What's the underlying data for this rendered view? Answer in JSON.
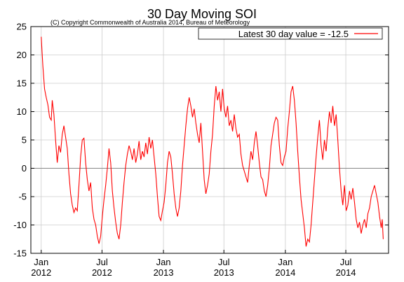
{
  "chart_data": {
    "type": "line",
    "title": "30 Day Moving SOI",
    "subtitle": "(C) Copyright Commonwealth of Australia 2014, Bureau of Meteorology",
    "xlabel": "",
    "ylabel": "",
    "ylim": [
      -15,
      25
    ],
    "yticks": [
      -15,
      -10,
      -5,
      0,
      5,
      10,
      15,
      20,
      25
    ],
    "xlim": [
      "2011-12-01",
      "2014-11-06"
    ],
    "xticks": [
      {
        "date": "2012-01-01",
        "month": "Jan",
        "year": "2012"
      },
      {
        "date": "2012-07-01",
        "month": "Jul",
        "year": "2012"
      },
      {
        "date": "2013-01-01",
        "month": "Jan",
        "year": "2013"
      },
      {
        "date": "2013-07-01",
        "month": "Jul",
        "year": "2013"
      },
      {
        "date": "2014-01-01",
        "month": "Jan",
        "year": "2014"
      },
      {
        "date": "2014-07-01",
        "month": "Jul",
        "year": "2014"
      }
    ],
    "grid": true,
    "zero_line": true,
    "legend": {
      "placement": "top-right",
      "entry": "Latest 30 day value = -12.5"
    },
    "series": [
      {
        "color": "#ff0000",
        "points": [
          [
            "2012-01-01",
            23.2
          ],
          [
            "2012-01-06",
            18.0
          ],
          [
            "2012-01-11",
            14.0
          ],
          [
            "2012-01-16",
            12.5
          ],
          [
            "2012-01-21",
            11.2
          ],
          [
            "2012-01-26",
            9.0
          ],
          [
            "2012-01-31",
            8.5
          ],
          [
            "2012-02-03",
            12.0
          ],
          [
            "2012-02-08",
            9.5
          ],
          [
            "2012-02-13",
            5.0
          ],
          [
            "2012-02-18",
            1.0
          ],
          [
            "2012-02-23",
            4.0
          ],
          [
            "2012-02-28",
            2.8
          ],
          [
            "2012-03-04",
            6.0
          ],
          [
            "2012-03-09",
            7.5
          ],
          [
            "2012-03-14",
            5.5
          ],
          [
            "2012-03-19",
            3.5
          ],
          [
            "2012-03-24",
            -1.0
          ],
          [
            "2012-03-29",
            -4.5
          ],
          [
            "2012-04-03",
            -6.5
          ],
          [
            "2012-04-08",
            -7.8
          ],
          [
            "2012-04-13",
            -7.0
          ],
          [
            "2012-04-18",
            -7.5
          ],
          [
            "2012-04-23",
            -3.0
          ],
          [
            "2012-04-28",
            2.0
          ],
          [
            "2012-05-03",
            5.0
          ],
          [
            "2012-05-08",
            5.3
          ],
          [
            "2012-05-13",
            1.0
          ],
          [
            "2012-05-18",
            -2.0
          ],
          [
            "2012-05-23",
            -4.0
          ],
          [
            "2012-05-28",
            -2.5
          ],
          [
            "2012-06-02",
            -7.0
          ],
          [
            "2012-06-07",
            -9.0
          ],
          [
            "2012-06-12",
            -10.0
          ],
          [
            "2012-06-17",
            -12.0
          ],
          [
            "2012-06-22",
            -13.3
          ],
          [
            "2012-06-27",
            -12.0
          ],
          [
            "2012-07-02",
            -8.5
          ],
          [
            "2012-07-07",
            -5.5
          ],
          [
            "2012-07-12",
            -3.0
          ],
          [
            "2012-07-17",
            0.0
          ],
          [
            "2012-07-22",
            3.5
          ],
          [
            "2012-07-27",
            1.0
          ],
          [
            "2012-08-01",
            -4.0
          ],
          [
            "2012-08-06",
            -7.0
          ],
          [
            "2012-08-11",
            -9.5
          ],
          [
            "2012-08-16",
            -11.5
          ],
          [
            "2012-08-21",
            -12.5
          ],
          [
            "2012-08-26",
            -10.0
          ],
          [
            "2012-08-31",
            -6.0
          ],
          [
            "2012-09-05",
            -2.5
          ],
          [
            "2012-09-10",
            0.5
          ],
          [
            "2012-09-15",
            2.5
          ],
          [
            "2012-09-20",
            4.0
          ],
          [
            "2012-09-25",
            3.0
          ],
          [
            "2012-09-30",
            1.5
          ],
          [
            "2012-10-05",
            3.5
          ],
          [
            "2012-10-10",
            1.0
          ],
          [
            "2012-10-15",
            2.5
          ],
          [
            "2012-10-20",
            4.8
          ],
          [
            "2012-10-25",
            1.5
          ],
          [
            "2012-10-30",
            3.0
          ],
          [
            "2012-11-04",
            2.0
          ],
          [
            "2012-11-09",
            4.5
          ],
          [
            "2012-11-14",
            2.5
          ],
          [
            "2012-11-19",
            5.5
          ],
          [
            "2012-11-24",
            3.5
          ],
          [
            "2012-11-29",
            5.0
          ],
          [
            "2012-12-04",
            2.0
          ],
          [
            "2012-12-09",
            -1.0
          ],
          [
            "2012-12-14",
            -5.0
          ],
          [
            "2012-12-19",
            -8.5
          ],
          [
            "2012-12-24",
            -9.2
          ],
          [
            "2012-12-29",
            -7.5
          ],
          [
            "2013-01-03",
            -6.0
          ],
          [
            "2013-01-08",
            -3.0
          ],
          [
            "2013-01-13",
            1.0
          ],
          [
            "2013-01-18",
            3.0
          ],
          [
            "2013-01-23",
            2.0
          ],
          [
            "2013-01-28",
            -1.0
          ],
          [
            "2013-02-02",
            -4.5
          ],
          [
            "2013-02-07",
            -7.0
          ],
          [
            "2013-02-12",
            -8.5
          ],
          [
            "2013-02-17",
            -7.0
          ],
          [
            "2013-02-22",
            -4.0
          ],
          [
            "2013-02-27",
            0.5
          ],
          [
            "2013-03-04",
            4.0
          ],
          [
            "2013-03-09",
            7.5
          ],
          [
            "2013-03-14",
            10.5
          ],
          [
            "2013-03-19",
            12.5
          ],
          [
            "2013-03-24",
            11.0
          ],
          [
            "2013-03-29",
            9.0
          ],
          [
            "2013-04-03",
            10.5
          ],
          [
            "2013-04-08",
            8.0
          ],
          [
            "2013-04-13",
            6.0
          ],
          [
            "2013-04-18",
            4.5
          ],
          [
            "2013-04-23",
            8.0
          ],
          [
            "2013-04-28",
            3.0
          ],
          [
            "2013-05-03",
            -2.0
          ],
          [
            "2013-05-08",
            -4.5
          ],
          [
            "2013-05-13",
            -3.0
          ],
          [
            "2013-05-18",
            -1.0
          ],
          [
            "2013-05-23",
            3.0
          ],
          [
            "2013-05-28",
            6.0
          ],
          [
            "2013-06-02",
            11.0
          ],
          [
            "2013-06-07",
            14.5
          ],
          [
            "2013-06-12",
            12.0
          ],
          [
            "2013-06-17",
            13.5
          ],
          [
            "2013-06-22",
            10.0
          ],
          [
            "2013-06-27",
            14.0
          ],
          [
            "2013-07-02",
            10.5
          ],
          [
            "2013-07-07",
            9.0
          ],
          [
            "2013-07-12",
            11.0
          ],
          [
            "2013-07-17",
            7.5
          ],
          [
            "2013-07-22",
            8.5
          ],
          [
            "2013-07-27",
            6.5
          ],
          [
            "2013-08-01",
            9.5
          ],
          [
            "2013-08-06",
            7.0
          ],
          [
            "2013-08-11",
            5.5
          ],
          [
            "2013-08-16",
            6.0
          ],
          [
            "2013-08-21",
            2.5
          ],
          [
            "2013-08-26",
            0.5
          ],
          [
            "2013-08-31",
            -0.5
          ],
          [
            "2013-09-05",
            -1.5
          ],
          [
            "2013-09-10",
            -2.5
          ],
          [
            "2013-09-15",
            0.5
          ],
          [
            "2013-09-20",
            3.0
          ],
          [
            "2013-09-25",
            1.5
          ],
          [
            "2013-09-30",
            4.5
          ],
          [
            "2013-10-05",
            6.5
          ],
          [
            "2013-10-10",
            4.0
          ],
          [
            "2013-10-15",
            1.0
          ],
          [
            "2013-10-20",
            -1.5
          ],
          [
            "2013-10-25",
            -2.0
          ],
          [
            "2013-10-30",
            -4.0
          ],
          [
            "2013-11-04",
            -5.0
          ],
          [
            "2013-11-09",
            -3.0
          ],
          [
            "2013-11-14",
            0.0
          ],
          [
            "2013-11-19",
            4.0
          ],
          [
            "2013-11-24",
            6.0
          ],
          [
            "2013-11-29",
            8.0
          ],
          [
            "2013-12-04",
            9.0
          ],
          [
            "2013-12-09",
            8.5
          ],
          [
            "2013-12-14",
            4.0
          ],
          [
            "2013-12-19",
            1.0
          ],
          [
            "2013-12-24",
            0.5
          ],
          [
            "2013-12-29",
            2.0
          ],
          [
            "2014-01-03",
            3.0
          ],
          [
            "2014-01-08",
            7.0
          ],
          [
            "2014-01-13",
            10.0
          ],
          [
            "2014-01-18",
            13.5
          ],
          [
            "2014-01-23",
            14.5
          ],
          [
            "2014-01-28",
            12.0
          ],
          [
            "2014-02-02",
            8.0
          ],
          [
            "2014-02-07",
            3.0
          ],
          [
            "2014-02-12",
            -1.5
          ],
          [
            "2014-02-17",
            -5.5
          ],
          [
            "2014-02-22",
            -8.0
          ],
          [
            "2014-02-27",
            -10.5
          ],
          [
            "2014-03-04",
            -13.8
          ],
          [
            "2014-03-09",
            -12.5
          ],
          [
            "2014-03-14",
            -13.0
          ],
          [
            "2014-03-19",
            -10.0
          ],
          [
            "2014-03-24",
            -6.0
          ],
          [
            "2014-03-29",
            -2.0
          ],
          [
            "2014-04-03",
            2.0
          ],
          [
            "2014-04-08",
            5.5
          ],
          [
            "2014-04-13",
            8.5
          ],
          [
            "2014-04-18",
            4.0
          ],
          [
            "2014-04-23",
            1.5
          ],
          [
            "2014-04-28",
            5.0
          ],
          [
            "2014-05-03",
            3.0
          ],
          [
            "2014-05-08",
            7.0
          ],
          [
            "2014-05-13",
            10.0
          ],
          [
            "2014-05-18",
            8.0
          ],
          [
            "2014-05-23",
            11.0
          ],
          [
            "2014-05-28",
            7.5
          ],
          [
            "2014-06-02",
            9.5
          ],
          [
            "2014-06-07",
            5.0
          ],
          [
            "2014-06-12",
            0.0
          ],
          [
            "2014-06-17",
            -4.0
          ],
          [
            "2014-06-22",
            -6.5
          ],
          [
            "2014-06-27",
            -3.0
          ],
          [
            "2014-07-02",
            -7.5
          ],
          [
            "2014-07-07",
            -6.5
          ],
          [
            "2014-07-12",
            -4.0
          ],
          [
            "2014-07-17",
            -5.5
          ],
          [
            "2014-07-22",
            -3.5
          ],
          [
            "2014-07-27",
            -6.0
          ],
          [
            "2014-08-01",
            -9.0
          ],
          [
            "2014-08-06",
            -10.5
          ],
          [
            "2014-08-11",
            -9.5
          ],
          [
            "2014-08-16",
            -11.5
          ],
          [
            "2014-08-21",
            -10.0
          ],
          [
            "2014-08-26",
            -9.0
          ],
          [
            "2014-08-31",
            -10.5
          ],
          [
            "2014-09-05",
            -8.0
          ],
          [
            "2014-09-10",
            -7.0
          ],
          [
            "2014-09-15",
            -5.0
          ],
          [
            "2014-09-20",
            -4.0
          ],
          [
            "2014-09-25",
            -3.0
          ],
          [
            "2014-09-30",
            -4.5
          ],
          [
            "2014-10-05",
            -6.0
          ],
          [
            "2014-10-10",
            -8.5
          ],
          [
            "2014-10-15",
            -10.5
          ],
          [
            "2014-10-18",
            -9.0
          ],
          [
            "2014-10-21",
            -12.5
          ]
        ]
      }
    ]
  }
}
